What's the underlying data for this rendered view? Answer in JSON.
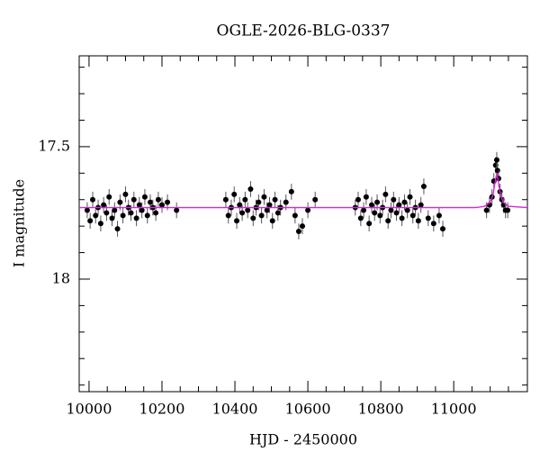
{
  "chart_data": {
    "type": "scatter",
    "title": "OGLE-2026-BLG-0337",
    "x_label": "HJD - 2450000",
    "y_label": "I magnitude",
    "xlim": [
      9973,
      11202
    ],
    "ylim": [
      17.157,
      18.425
    ],
    "y_inverted": true,
    "xticks": [
      10000,
      10200,
      10400,
      10600,
      10800,
      11000
    ],
    "yticks": [
      17.5,
      18
    ],
    "xminorticks": [
      10050,
      10100,
      10150,
      10250,
      10300,
      10350,
      10450,
      10500,
      10550,
      10650,
      10700,
      10750,
      10850,
      10900,
      10950,
      11050,
      11100,
      11150
    ],
    "yminorticks": [
      17.2,
      17.3,
      17.4,
      17.6,
      17.7,
      17.8,
      17.9,
      18.1,
      18.2,
      18.3,
      18.4
    ],
    "series": [
      {
        "type": "scatter",
        "color": "#000000",
        "yerr": 0.03,
        "x": [
          9995,
          10003,
          10010,
          10018,
          10025,
          10032,
          10040,
          10048,
          10055,
          10063,
          10070,
          10078,
          10085,
          10093,
          10100,
          10108,
          10115,
          10123,
          10130,
          10138,
          10145,
          10153,
          10160,
          10168,
          10175,
          10183,
          10190,
          10200,
          10215,
          10240,
          10375,
          10382,
          10390,
          10398,
          10405,
          10413,
          10420,
          10428,
          10435,
          10443,
          10450,
          10458,
          10465,
          10473,
          10480,
          10488,
          10495,
          10503,
          10510,
          10518,
          10525,
          10540,
          10555,
          10565,
          10575,
          10585,
          10600,
          10620,
          10730,
          10738,
          10745,
          10753,
          10760,
          10768,
          10775,
          10783,
          10790,
          10798,
          10805,
          10813,
          10820,
          10828,
          10835,
          10843,
          10850,
          10858,
          10865,
          10873,
          10880,
          10888,
          10895,
          10903,
          10910,
          10918,
          10930,
          10945,
          10960,
          10970,
          11090,
          11098,
          11105,
          11110,
          11115,
          11118,
          11120,
          11123,
          11127,
          11132,
          11137,
          11142,
          11148
        ],
        "values": [
          17.74,
          17.78,
          17.7,
          17.76,
          17.73,
          17.79,
          17.72,
          17.75,
          17.69,
          17.77,
          17.74,
          17.81,
          17.71,
          17.76,
          17.68,
          17.73,
          17.75,
          17.7,
          17.77,
          17.72,
          17.74,
          17.69,
          17.76,
          17.71,
          17.73,
          17.75,
          17.7,
          17.72,
          17.71,
          17.74,
          17.7,
          17.76,
          17.73,
          17.68,
          17.78,
          17.72,
          17.75,
          17.7,
          17.74,
          17.66,
          17.77,
          17.73,
          17.71,
          17.76,
          17.69,
          17.74,
          17.72,
          17.78,
          17.7,
          17.75,
          17.73,
          17.71,
          17.67,
          17.76,
          17.82,
          17.8,
          17.74,
          17.7,
          17.73,
          17.7,
          17.77,
          17.74,
          17.69,
          17.79,
          17.72,
          17.75,
          17.71,
          17.76,
          17.73,
          17.68,
          17.78,
          17.74,
          17.7,
          17.75,
          17.72,
          17.77,
          17.71,
          17.74,
          17.69,
          17.76,
          17.73,
          17.78,
          17.72,
          17.65,
          17.77,
          17.79,
          17.76,
          17.81,
          17.74,
          17.72,
          17.69,
          17.63,
          17.57,
          17.55,
          17.59,
          17.62,
          17.67,
          17.7,
          17.72,
          17.74,
          17.74
        ]
      },
      {
        "type": "line",
        "color": "#e020e0",
        "x": [
          9973,
          11060,
          11085,
          11100,
          11108,
          11114,
          11118,
          11122,
          11128,
          11136,
          11150,
          11202
        ],
        "values": [
          17.73,
          17.73,
          17.725,
          17.71,
          17.68,
          17.63,
          17.6,
          17.63,
          17.68,
          17.71,
          17.725,
          17.73
        ]
      }
    ]
  }
}
